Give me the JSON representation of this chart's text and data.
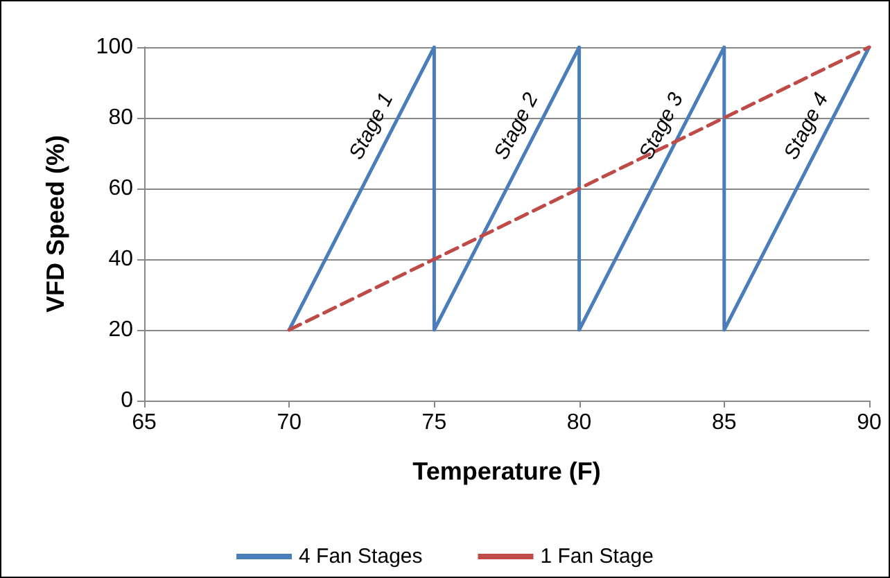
{
  "chart_data": {
    "type": "line",
    "xlabel": "Temperature (F)",
    "ylabel": "VFD Speed (%)",
    "xlim": [
      65,
      90
    ],
    "xticks": [
      65,
      70,
      75,
      80,
      85,
      90
    ],
    "ylim": [
      0,
      100
    ],
    "yticks": [
      0,
      20,
      40,
      60,
      80,
      100
    ],
    "grid": "y",
    "legend": "bottom",
    "marker": "none",
    "series": [
      {
        "name": "4 Fan Stages",
        "color": "#4a7ebb",
        "line_style": "solid",
        "x": [
          70,
          75,
          75,
          80,
          80,
          85,
          85,
          90
        ],
        "values": [
          20,
          100,
          20,
          100,
          20,
          100,
          20,
          100
        ]
      },
      {
        "name": "1 Fan Stage",
        "color": "#be4b48",
        "line_style": "dashed",
        "x": [
          70,
          90
        ],
        "values": [
          20,
          100
        ]
      }
    ],
    "annotations": [
      "Stage 1",
      "Stage 2",
      "Stage 3",
      "Stage 4"
    ]
  }
}
